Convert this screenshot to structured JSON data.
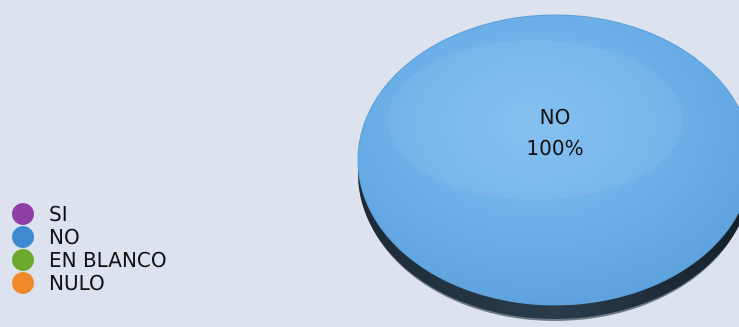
{
  "chart_data": {
    "type": "pie",
    "categories": [
      "SI",
      "NO",
      "EN BLANCO",
      "NULO"
    ],
    "values": [
      0,
      100,
      0,
      0
    ],
    "colors": [
      "#8e3ea6",
      "#3f89d1",
      "#6aa92d",
      "#f0892a"
    ],
    "slice_labels": [
      {
        "category": "NO",
        "percent": "100%"
      }
    ],
    "legend_position": "left-bottom",
    "grid": false
  },
  "pie_style": {
    "top_color": "#6aaee8",
    "rim_color": "#223240",
    "shadow_color": "#12202c",
    "three_d": true
  }
}
